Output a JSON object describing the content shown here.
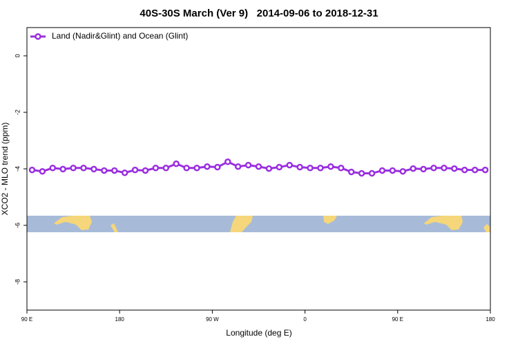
{
  "chart_data": {
    "type": "line",
    "title": "40S-30S March (Ver 9)   2014-09-06 to 2018-12-31",
    "x_label": "Longitude (deg E)",
    "y_label": "XCO2 - MLO trend (ppm)",
    "x": [
      95,
      105,
      115,
      125,
      135,
      145,
      155,
      165,
      175,
      185,
      195,
      205,
      215,
      225,
      235,
      245,
      255,
      265,
      275,
      285,
      295,
      305,
      315,
      325,
      335,
      345,
      355,
      365,
      375,
      385,
      395,
      405,
      415,
      425,
      435,
      445,
      455,
      465,
      475,
      485,
      495,
      505,
      515,
      525,
      535
    ],
    "series": [
      {
        "name": "Land (Nadir&Glint) and Ocean (Glint)",
        "color": "#9a2ee0",
        "values": [
          -4.04,
          -4.09,
          -3.97,
          -4.01,
          -3.97,
          -3.97,
          -4.01,
          -4.06,
          -4.06,
          -4.14,
          -4.04,
          -4.06,
          -3.97,
          -3.97,
          -3.82,
          -3.97,
          -3.97,
          -3.92,
          -3.94,
          -3.75,
          -3.92,
          -3.87,
          -3.92,
          -3.99,
          -3.94,
          -3.87,
          -3.94,
          -3.97,
          -3.97,
          -3.92,
          -3.97,
          -4.11,
          -4.16,
          -4.16,
          -4.06,
          -4.06,
          -4.09,
          -3.99,
          -4.01,
          -3.97,
          -3.97,
          -3.99,
          -4.04,
          -4.04,
          -4.04
        ]
      }
    ],
    "xlim": [
      90,
      540
    ],
    "ylim": [
      -9,
      1
    ],
    "xticks": [
      {
        "value": 90,
        "label": "90 E"
      },
      {
        "value": 180,
        "label": "180"
      },
      {
        "value": 270,
        "label": "90 W"
      },
      {
        "value": 360,
        "label": "0"
      },
      {
        "value": 450,
        "label": "90 E"
      },
      {
        "value": 540,
        "label": "180"
      }
    ],
    "yticks": [
      0,
      -2,
      -4,
      -6,
      -8
    ],
    "legend": "top-left"
  }
}
